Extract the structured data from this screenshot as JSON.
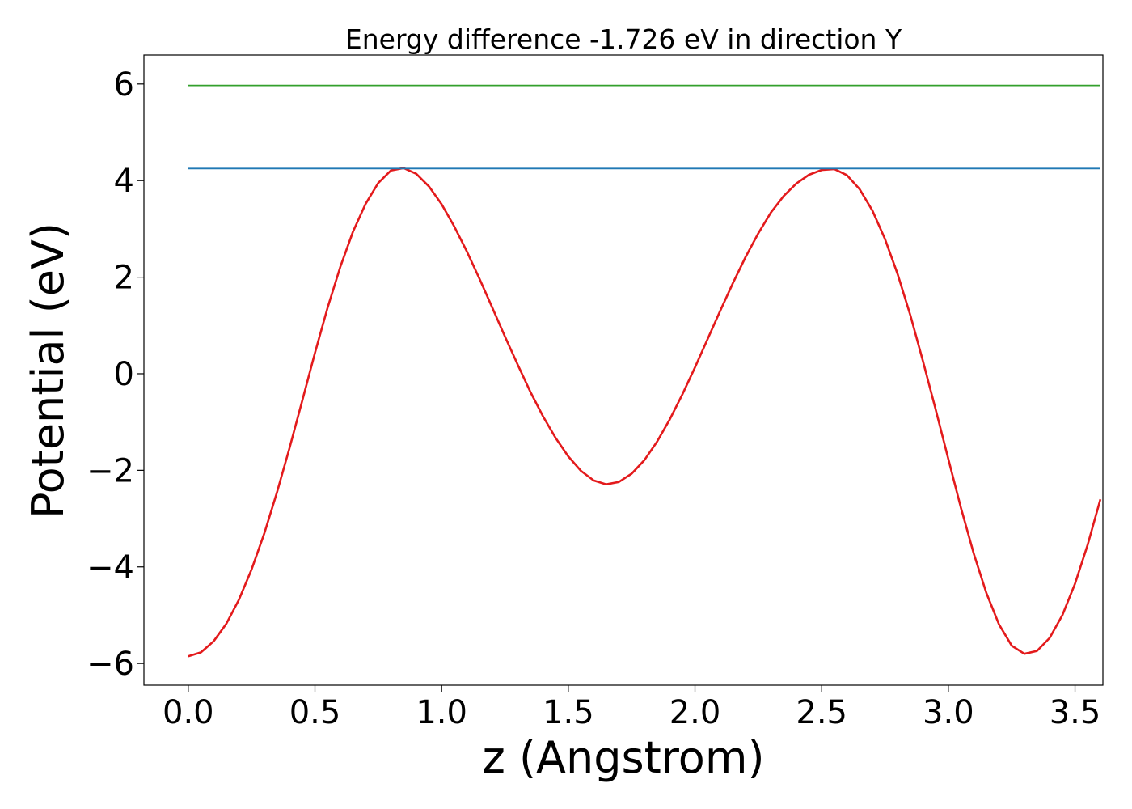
{
  "chart_data": {
    "type": "line",
    "title": "Energy difference -1.726 eV in direction Y",
    "xlabel": "z (Angstrom)",
    "ylabel": "Potential (eV)",
    "xlim": [
      -0.175,
      3.61
    ],
    "ylim": [
      -6.45,
      6.6
    ],
    "xticks": [
      0.0,
      0.5,
      1.0,
      1.5,
      2.0,
      2.5,
      3.0,
      3.5
    ],
    "xtick_labels": [
      "0.0",
      "0.5",
      "1.0",
      "1.5",
      "2.0",
      "2.5",
      "3.0",
      "3.5"
    ],
    "yticks": [
      -6,
      -4,
      -2,
      0,
      2,
      4,
      6
    ],
    "ytick_labels": [
      "−6",
      "−4",
      "−2",
      "0",
      "2",
      "4",
      "6"
    ],
    "grid": false,
    "legend": "none",
    "colors": {
      "potential": "#e31a1c",
      "max_level": "#1f78b4",
      "upper_level": "#33a02c"
    },
    "series": [
      {
        "key": "potential",
        "style": "line",
        "x": [
          0.0,
          0.05,
          0.1,
          0.15,
          0.2,
          0.25,
          0.3,
          0.35,
          0.4,
          0.45,
          0.5,
          0.55,
          0.6,
          0.65,
          0.7,
          0.75,
          0.8,
          0.85,
          0.9,
          0.95,
          1.0,
          1.05,
          1.1,
          1.15,
          1.2,
          1.25,
          1.3,
          1.35,
          1.4,
          1.45,
          1.5,
          1.55,
          1.6,
          1.65,
          1.7,
          1.75,
          1.8,
          1.85,
          1.9,
          1.95,
          2.0,
          2.05,
          2.1,
          2.15,
          2.2,
          2.25,
          2.3,
          2.35,
          2.4,
          2.45,
          2.5,
          2.55,
          2.6,
          2.65,
          2.7,
          2.75,
          2.8,
          2.85,
          2.9,
          2.95,
          3.0,
          3.05,
          3.1,
          3.15,
          3.2,
          3.25,
          3.3,
          3.35,
          3.4,
          3.45,
          3.5,
          3.55,
          3.6
        ],
        "y": [
          -5.85,
          -5.77,
          -5.54,
          -5.18,
          -4.68,
          -4.05,
          -3.31,
          -2.46,
          -1.53,
          -0.56,
          0.43,
          1.37,
          2.21,
          2.94,
          3.52,
          3.95,
          4.21,
          4.26,
          4.14,
          3.88,
          3.51,
          3.05,
          2.53,
          1.96,
          1.37,
          0.77,
          0.19,
          -0.37,
          -0.88,
          -1.33,
          -1.71,
          -2.01,
          -2.21,
          -2.29,
          -2.24,
          -2.07,
          -1.79,
          -1.41,
          -0.95,
          -0.43,
          0.13,
          0.72,
          1.31,
          1.88,
          2.42,
          2.91,
          3.34,
          3.68,
          3.94,
          4.12,
          4.22,
          4.24,
          4.11,
          3.82,
          3.38,
          2.79,
          2.06,
          1.21,
          0.26,
          -0.74,
          -1.77,
          -2.78,
          -3.72,
          -4.54,
          -5.19,
          -5.63,
          -5.8,
          -5.74,
          -5.47,
          -5.0,
          -4.35,
          -3.54,
          -2.6
        ]
      },
      {
        "key": "max_level",
        "style": "hline",
        "x": [
          0.0,
          3.6
        ],
        "y": [
          4.25,
          4.25
        ]
      },
      {
        "key": "upper_level",
        "style": "hline",
        "x": [
          0.0,
          3.6
        ],
        "y": [
          5.97,
          5.97
        ]
      }
    ]
  }
}
